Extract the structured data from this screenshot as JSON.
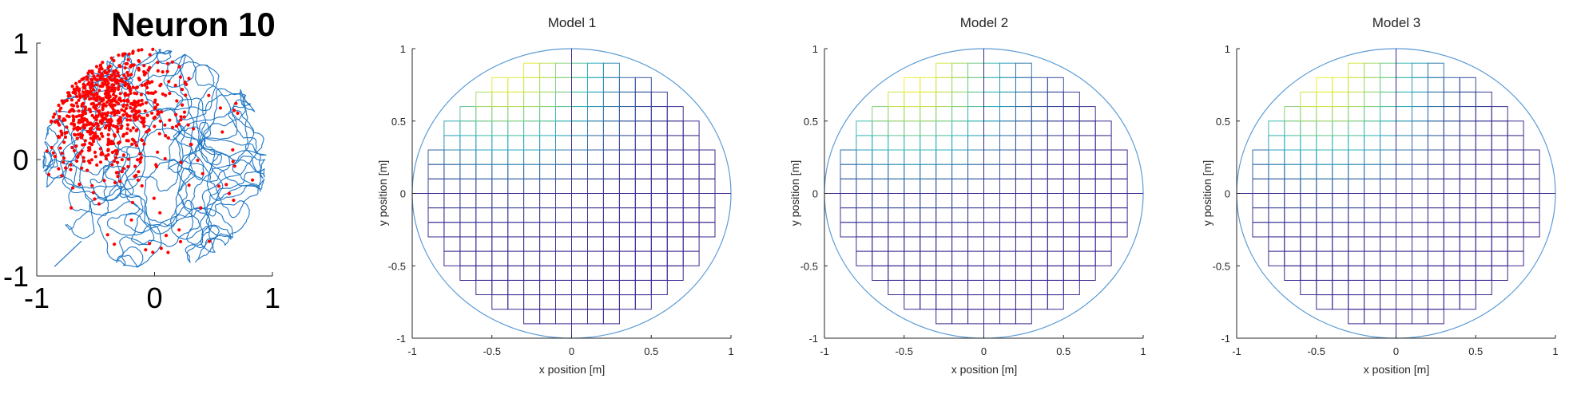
{
  "colors": {
    "trajectory": "#1f77c4",
    "spikes": "#ff0000",
    "boundary": "#5b9bd5",
    "axis": "#262626",
    "mesh_low": "#3e268f",
    "mesh_mid": "#2bb5be",
    "mesh_high": "#f9f12c"
  },
  "chart_data": [
    {
      "type": "scatter",
      "title": "Neuron 10",
      "xlim": [
        -1,
        1
      ],
      "ylim": [
        -1,
        1
      ],
      "xticks": [
        "-1",
        "0",
        "1"
      ],
      "yticks": [
        "1",
        "0",
        "-1"
      ],
      "series": [
        {
          "kind": "trajectory",
          "description_visible": false,
          "arena": "circle",
          "radius": 0.95
        },
        {
          "kind": "spike-points",
          "field_center": [
            -0.45,
            0.5
          ],
          "field_spread": [
            0.3,
            0.28
          ],
          "count": 900
        }
      ]
    },
    {
      "type": "heatmap",
      "title": "Model 1",
      "xlabel": "x position [m]",
      "ylabel": "y position [m]",
      "xlim": [
        -1,
        1
      ],
      "ylim": [
        -1,
        1
      ],
      "xticks": [
        "-1",
        "-0.5",
        "0",
        "0.5",
        "1"
      ],
      "yticks": [
        "1",
        "0.5",
        "0",
        "-0.5",
        "-1"
      ],
      "peak": [
        -0.4,
        0.9
      ],
      "grid_step": 0.1
    },
    {
      "type": "heatmap",
      "title": "Model 2",
      "xlabel": "x position [m]",
      "ylabel": "y position [m]",
      "xlim": [
        -1,
        1
      ],
      "ylim": [
        -1,
        1
      ],
      "xticks": [
        "-1",
        "-0.5",
        "0",
        "0.5",
        "1"
      ],
      "yticks": [
        "1",
        "0.5",
        "0",
        "-0.5",
        "-1"
      ],
      "peak": [
        -0.45,
        0.85
      ],
      "grid_step": 0.1
    },
    {
      "type": "heatmap",
      "title": "Model 3",
      "xlabel": "x position [m]",
      "ylabel": "y position [m]",
      "xlim": [
        -1,
        1
      ],
      "ylim": [
        -1,
        1
      ],
      "xticks": [
        "-1",
        "-0.5",
        "0",
        "0.5",
        "1"
      ],
      "yticks": [
        "1",
        "0.5",
        "0",
        "-0.5",
        "-1"
      ],
      "peak": [
        -0.45,
        0.85
      ],
      "grid_step": 0.1
    }
  ]
}
